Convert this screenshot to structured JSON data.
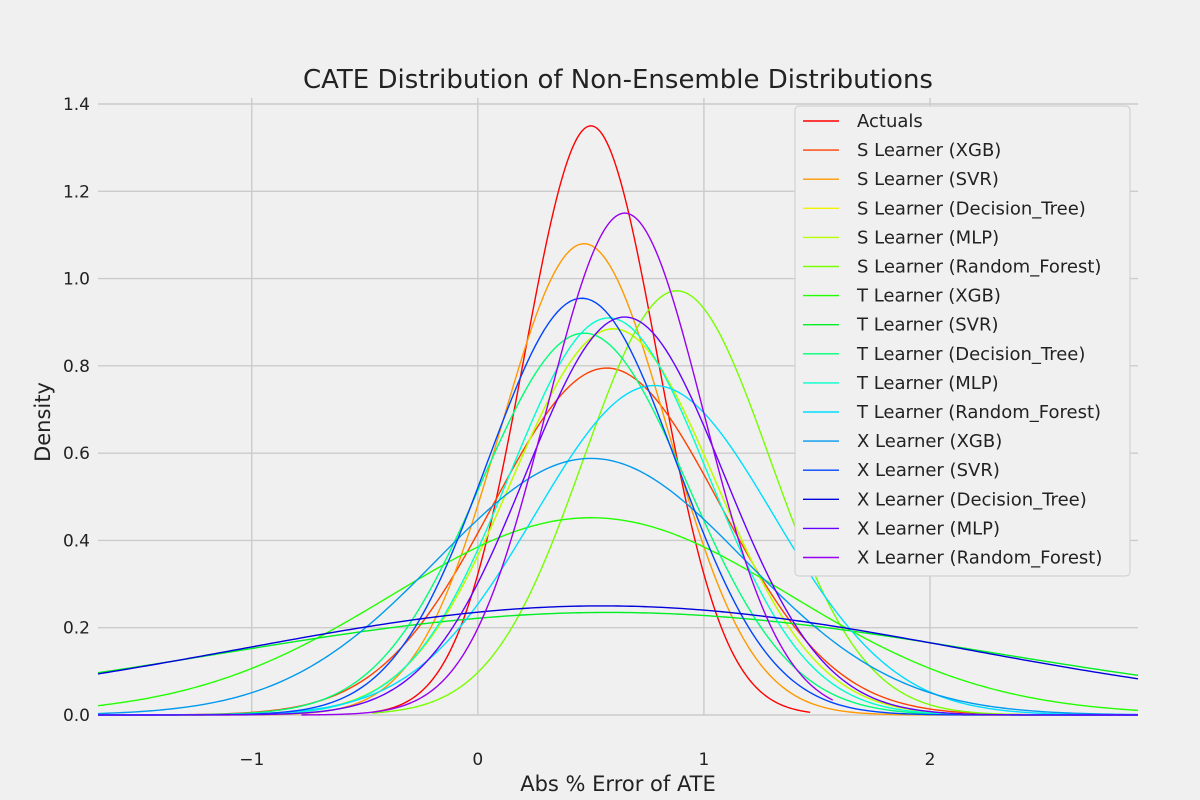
{
  "chart_data": {
    "type": "line",
    "title": "CATE Distribution of Non-Ensemble Distributions",
    "xlabel": "Abs % Error of ATE",
    "ylabel": "Density",
    "xlim": [
      -1.68,
      2.92
    ],
    "ylim": [
      0,
      1.4
    ],
    "xticks": [
      -1,
      0,
      1,
      2
    ],
    "xtick_labels": [
      "−1",
      "0",
      "1",
      "2"
    ],
    "yticks": [
      0.0,
      0.2,
      0.4,
      0.6,
      0.8,
      1.0,
      1.2,
      1.4
    ],
    "ytick_labels": [
      "0.0",
      "0.2",
      "0.4",
      "0.6",
      "0.8",
      "1.0",
      "1.2",
      "1.4"
    ],
    "grid": true,
    "legend_position": "top-right",
    "series": [
      {
        "name": "Actuals",
        "color": "#ff0000",
        "mean": 0.5,
        "peak": 1.35,
        "x_range": [
          -0.47,
          1.47
        ]
      },
      {
        "name": "S Learner (XGB)",
        "color": "#ff4000",
        "mean": 0.57,
        "peak": 0.795,
        "x_range": [
          -1.68,
          2.92
        ]
      },
      {
        "name": "S Learner (SVR)",
        "color": "#ff9900",
        "mean": 0.47,
        "peak": 1.08,
        "x_range": [
          -1.68,
          2.92
        ]
      },
      {
        "name": "S Learner (Decision_Tree)",
        "color": "#f2f200",
        "mean": 0.6,
        "peak": 0.885,
        "x_range": [
          -1.68,
          2.92
        ]
      },
      {
        "name": "S Learner (MLP)",
        "color": "#b8ff00",
        "mean": 0.6,
        "peak": 0.885,
        "x_range": [
          -1.68,
          2.92
        ]
      },
      {
        "name": "S Learner (Random_Forest)",
        "color": "#77ff00",
        "mean": 0.88,
        "peak": 0.972,
        "x_range": [
          -0.47,
          2.92
        ]
      },
      {
        "name": "T Learner (XGB)",
        "color": "#22ff00",
        "mean": 0.5,
        "peak": 0.452,
        "x_range": [
          -1.68,
          2.92
        ]
      },
      {
        "name": "T Learner (SVR)",
        "color": "#00ee22",
        "mean": 0.58,
        "peak": 0.235,
        "x_range": [
          -1.68,
          2.92
        ]
      },
      {
        "name": "T Learner (Decision_Tree)",
        "color": "#00ff77",
        "mean": 0.47,
        "peak": 0.875,
        "x_range": [
          -1.68,
          2.92
        ]
      },
      {
        "name": "T Learner (MLP)",
        "color": "#00ffcc",
        "mean": 0.58,
        "peak": 0.91,
        "x_range": [
          -1.68,
          2.92
        ]
      },
      {
        "name": "T Learner (Random_Forest)",
        "color": "#00ddff",
        "mean": 0.78,
        "peak": 0.755,
        "x_range": [
          -1.68,
          2.92
        ]
      },
      {
        "name": "X Learner (XGB)",
        "color": "#0099ee",
        "mean": 0.5,
        "peak": 0.588,
        "x_range": [
          -1.68,
          2.92
        ]
      },
      {
        "name": "X Learner (SVR)",
        "color": "#0044ff",
        "mean": 0.46,
        "peak": 0.955,
        "x_range": [
          -1.68,
          2.92
        ]
      },
      {
        "name": "X Learner (Decision_Tree)",
        "color": "#0000dd",
        "mean": 0.55,
        "peak": 0.25,
        "x_range": [
          -1.68,
          2.92
        ]
      },
      {
        "name": "X Learner (MLP)",
        "color": "#6600ff",
        "mean": 0.65,
        "peak": 0.912,
        "x_range": [
          -1.68,
          2.92
        ]
      },
      {
        "name": "X Learner (Random_Forest)",
        "color": "#9900ee",
        "mean": 0.65,
        "peak": 1.15,
        "x_range": [
          -0.78,
          1.57
        ]
      }
    ]
  }
}
